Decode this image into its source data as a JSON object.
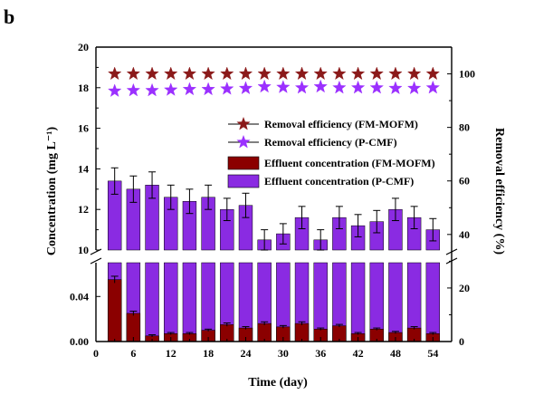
{
  "panel_label": "b",
  "chart_data": {
    "type": "bar",
    "x": [
      3,
      6,
      9,
      12,
      15,
      18,
      21,
      24,
      27,
      30,
      33,
      36,
      39,
      42,
      45,
      48,
      51,
      54
    ],
    "xlabel": "Time (day)",
    "xlim": [
      0,
      57
    ],
    "xticks": [
      "0",
      "6",
      "12",
      "18",
      "24",
      "30",
      "36",
      "42",
      "48",
      "54"
    ],
    "ylabel": "Concentration (mg L⁻¹)",
    "y_axis_break": {
      "upper_range": [
        10,
        20
      ],
      "upper_ticks": [
        "10",
        "12",
        "14",
        "16",
        "18",
        "20"
      ],
      "lower_range": [
        0.0,
        0.07
      ],
      "lower_ticks": [
        "0.00",
        "0.04"
      ]
    },
    "y2label": "Removal efficiency (%)",
    "y2lim": [
      0,
      110
    ],
    "y2ticks": [
      "0",
      "20",
      "40",
      "60",
      "80",
      "100"
    ],
    "grid": false,
    "legend_position": "center-right",
    "series": [
      {
        "name": "Effluent concentration (P-CMF)",
        "kind": "bar",
        "axis": "left-upper",
        "color": "#8A2BE2",
        "values": [
          13.4,
          13.0,
          13.2,
          12.6,
          12.4,
          12.6,
          12.0,
          12.2,
          10.5,
          10.8,
          11.6,
          10.5,
          11.6,
          11.2,
          11.4,
          12.0,
          11.6,
          11.0
        ],
        "errors": [
          0.65,
          0.65,
          0.65,
          0.6,
          0.6,
          0.6,
          0.55,
          0.6,
          0.5,
          0.5,
          0.55,
          0.5,
          0.55,
          0.55,
          0.55,
          0.55,
          0.55,
          0.55
        ]
      },
      {
        "name": "Effluent concentration (FM-MOFM)",
        "kind": "bar",
        "axis": "left-lower",
        "color": "#8B0000",
        "values": [
          0.055,
          0.025,
          0.005,
          0.007,
          0.007,
          0.01,
          0.015,
          0.012,
          0.016,
          0.013,
          0.016,
          0.011,
          0.014,
          0.007,
          0.011,
          0.008,
          0.012,
          0.007
        ],
        "errors": [
          0.003,
          0.002,
          0.001,
          0.001,
          0.001,
          0.001,
          0.0015,
          0.0012,
          0.0015,
          0.0012,
          0.0015,
          0.001,
          0.0012,
          0.001,
          0.001,
          0.001,
          0.0012,
          0.001
        ]
      },
      {
        "name": "Removal efficiency (FM-MOFM)",
        "kind": "star",
        "axis": "right",
        "color": "#8B1A1A",
        "values": [
          100,
          100,
          100,
          100,
          100,
          100,
          100,
          100,
          100,
          100,
          100,
          100,
          100,
          100,
          100,
          100,
          100,
          100
        ]
      },
      {
        "name": "Removal efficiency (P-CMF)",
        "kind": "star",
        "axis": "right",
        "color": "#9B30FF",
        "values": [
          93.6,
          93.8,
          93.8,
          94.0,
          94.2,
          94.2,
          94.4,
          94.6,
          95.2,
          95.0,
          94.8,
          95.2,
          94.8,
          94.8,
          94.8,
          94.6,
          94.6,
          94.8
        ]
      }
    ]
  }
}
